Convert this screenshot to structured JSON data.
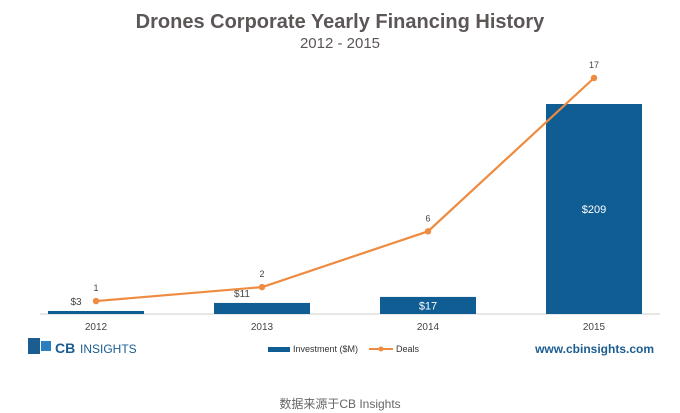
{
  "chart_data": {
    "type": "bar",
    "title": "Drones Corporate Yearly Financing History",
    "subtitle": "2012 - 2015",
    "categories": [
      "2012",
      "2013",
      "2014",
      "2015"
    ],
    "series": [
      {
        "name": "Investment ($M)",
        "type": "bar",
        "values": [
          3,
          11,
          17,
          209
        ],
        "labels": [
          "$3",
          "$11",
          "$17",
          "$209"
        ],
        "color": "#0f5d92"
      },
      {
        "name": "Deals",
        "type": "line",
        "values": [
          1,
          2,
          6,
          17
        ],
        "labels": [
          "1",
          "2",
          "6",
          "17"
        ],
        "color": "#ef8a41"
      }
    ],
    "grid": false,
    "legend": "bottom-center"
  },
  "branding": {
    "logo_mark": "CB",
    "logo_word": "INSIGHTS",
    "website": "www.cbinsights.com"
  },
  "caption": "数据来源于CB Insights"
}
